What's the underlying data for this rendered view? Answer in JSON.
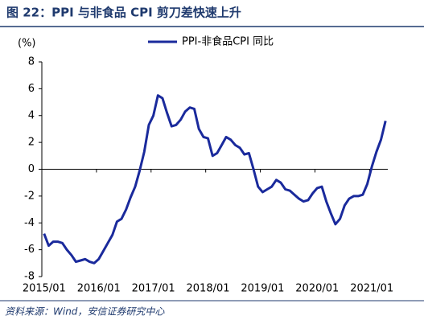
{
  "title": "图 22：PPI 与非食品 CPI 剪刀差快速上升",
  "source": "资料来源：Wind，安信证券研究中心",
  "chart_data": {
    "type": "line",
    "y_label": "(%)",
    "categories": [
      "2015/01",
      null,
      null,
      null,
      null,
      null,
      null,
      null,
      null,
      null,
      null,
      null,
      "2016/01",
      null,
      null,
      null,
      null,
      null,
      null,
      null,
      null,
      null,
      null,
      null,
      "2017/01",
      null,
      null,
      null,
      null,
      null,
      null,
      null,
      null,
      null,
      null,
      null,
      "2018/01",
      null,
      null,
      null,
      null,
      null,
      null,
      null,
      null,
      null,
      null,
      null,
      "2019/01",
      null,
      null,
      null,
      null,
      null,
      null,
      null,
      null,
      null,
      null,
      null,
      "2020/01",
      null,
      null,
      null,
      null,
      null,
      null,
      null,
      null,
      null,
      null,
      null,
      "2021/01",
      null,
      null,
      null
    ],
    "series": [
      {
        "name": "PPI-非食品CPI 同比",
        "color": "#1a2a9c",
        "values": [
          -4.8,
          -5.7,
          -5.4,
          -5.4,
          -5.5,
          -6.0,
          -6.4,
          -6.9,
          -6.8,
          -6.7,
          -6.9,
          -7.0,
          -6.7,
          -6.1,
          -5.5,
          -4.9,
          -3.9,
          -3.7,
          -3.0,
          -2.1,
          -1.3,
          -0.1,
          1.3,
          3.3,
          4.0,
          5.5,
          5.3,
          4.2,
          3.2,
          3.3,
          3.7,
          4.3,
          4.6,
          4.5,
          3.0,
          2.4,
          2.3,
          1.0,
          1.2,
          1.8,
          2.4,
          2.2,
          1.8,
          1.6,
          1.1,
          1.2,
          0.0,
          -1.3,
          -1.7,
          -1.5,
          -1.3,
          -0.8,
          -1.0,
          -1.5,
          -1.6,
          -1.9,
          -2.2,
          -2.4,
          -2.3,
          -1.8,
          -1.4,
          -1.3,
          -2.4,
          -3.3,
          -4.1,
          -3.7,
          -2.7,
          -2.2,
          -2.0,
          -2.0,
          -1.9,
          -1.1,
          0.2,
          1.3,
          2.2,
          3.6
        ]
      }
    ],
    "ylim": [
      -8,
      8
    ],
    "yticks": [
      -8,
      -6,
      -4,
      -2,
      0,
      2,
      4,
      6,
      8
    ],
    "legend": "top"
  }
}
